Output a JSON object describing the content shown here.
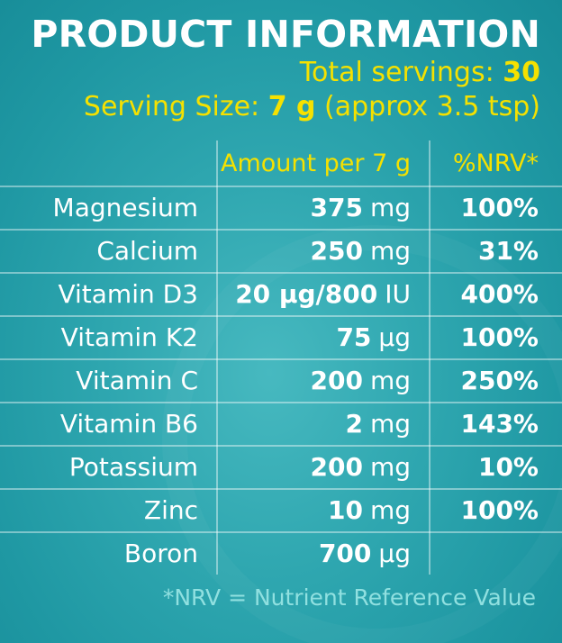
{
  "header": {
    "title": "PRODUCT INFORMATION",
    "servings_label": "Total servings:",
    "servings_value": "30",
    "serving_size_label": "Serving Size:",
    "serving_size_value": "7 g",
    "serving_size_note": "(approx 3.5 tsp)"
  },
  "table": {
    "columns": [
      "Amount per 7 g",
      "%NRV*"
    ],
    "rows": [
      {
        "name": "Magnesium",
        "amount_value": "375",
        "amount_unit": "mg",
        "nrv": "100%"
      },
      {
        "name": "Calcium",
        "amount_value": "250",
        "amount_unit": "mg",
        "nrv": "31%"
      },
      {
        "name": "Vitamin D3",
        "amount_value": "20 µg/800",
        "amount_unit": "IU",
        "nrv": "400%"
      },
      {
        "name": "Vitamin K2",
        "amount_value": "75",
        "amount_unit": "µg",
        "nrv": "100%"
      },
      {
        "name": "Vitamin C",
        "amount_value": "200",
        "amount_unit": "mg",
        "nrv": "250%"
      },
      {
        "name": "Vitamin B6",
        "amount_value": "2",
        "amount_unit": "mg",
        "nrv": "143%"
      },
      {
        "name": "Potassium",
        "amount_value": "200",
        "amount_unit": "mg",
        "nrv": "10%"
      },
      {
        "name": "Zinc",
        "amount_value": "10",
        "amount_unit": "mg",
        "nrv": "100%"
      },
      {
        "name": "Boron",
        "amount_value": "700",
        "amount_unit": "µg",
        "nrv": ""
      }
    ]
  },
  "footnote": "*NRV = Nutrient Reference Value",
  "colors": {
    "background": "#1f98a3",
    "accent_yellow": "#f5e100",
    "white": "#ffffff",
    "footnote": "#90e0e0"
  }
}
